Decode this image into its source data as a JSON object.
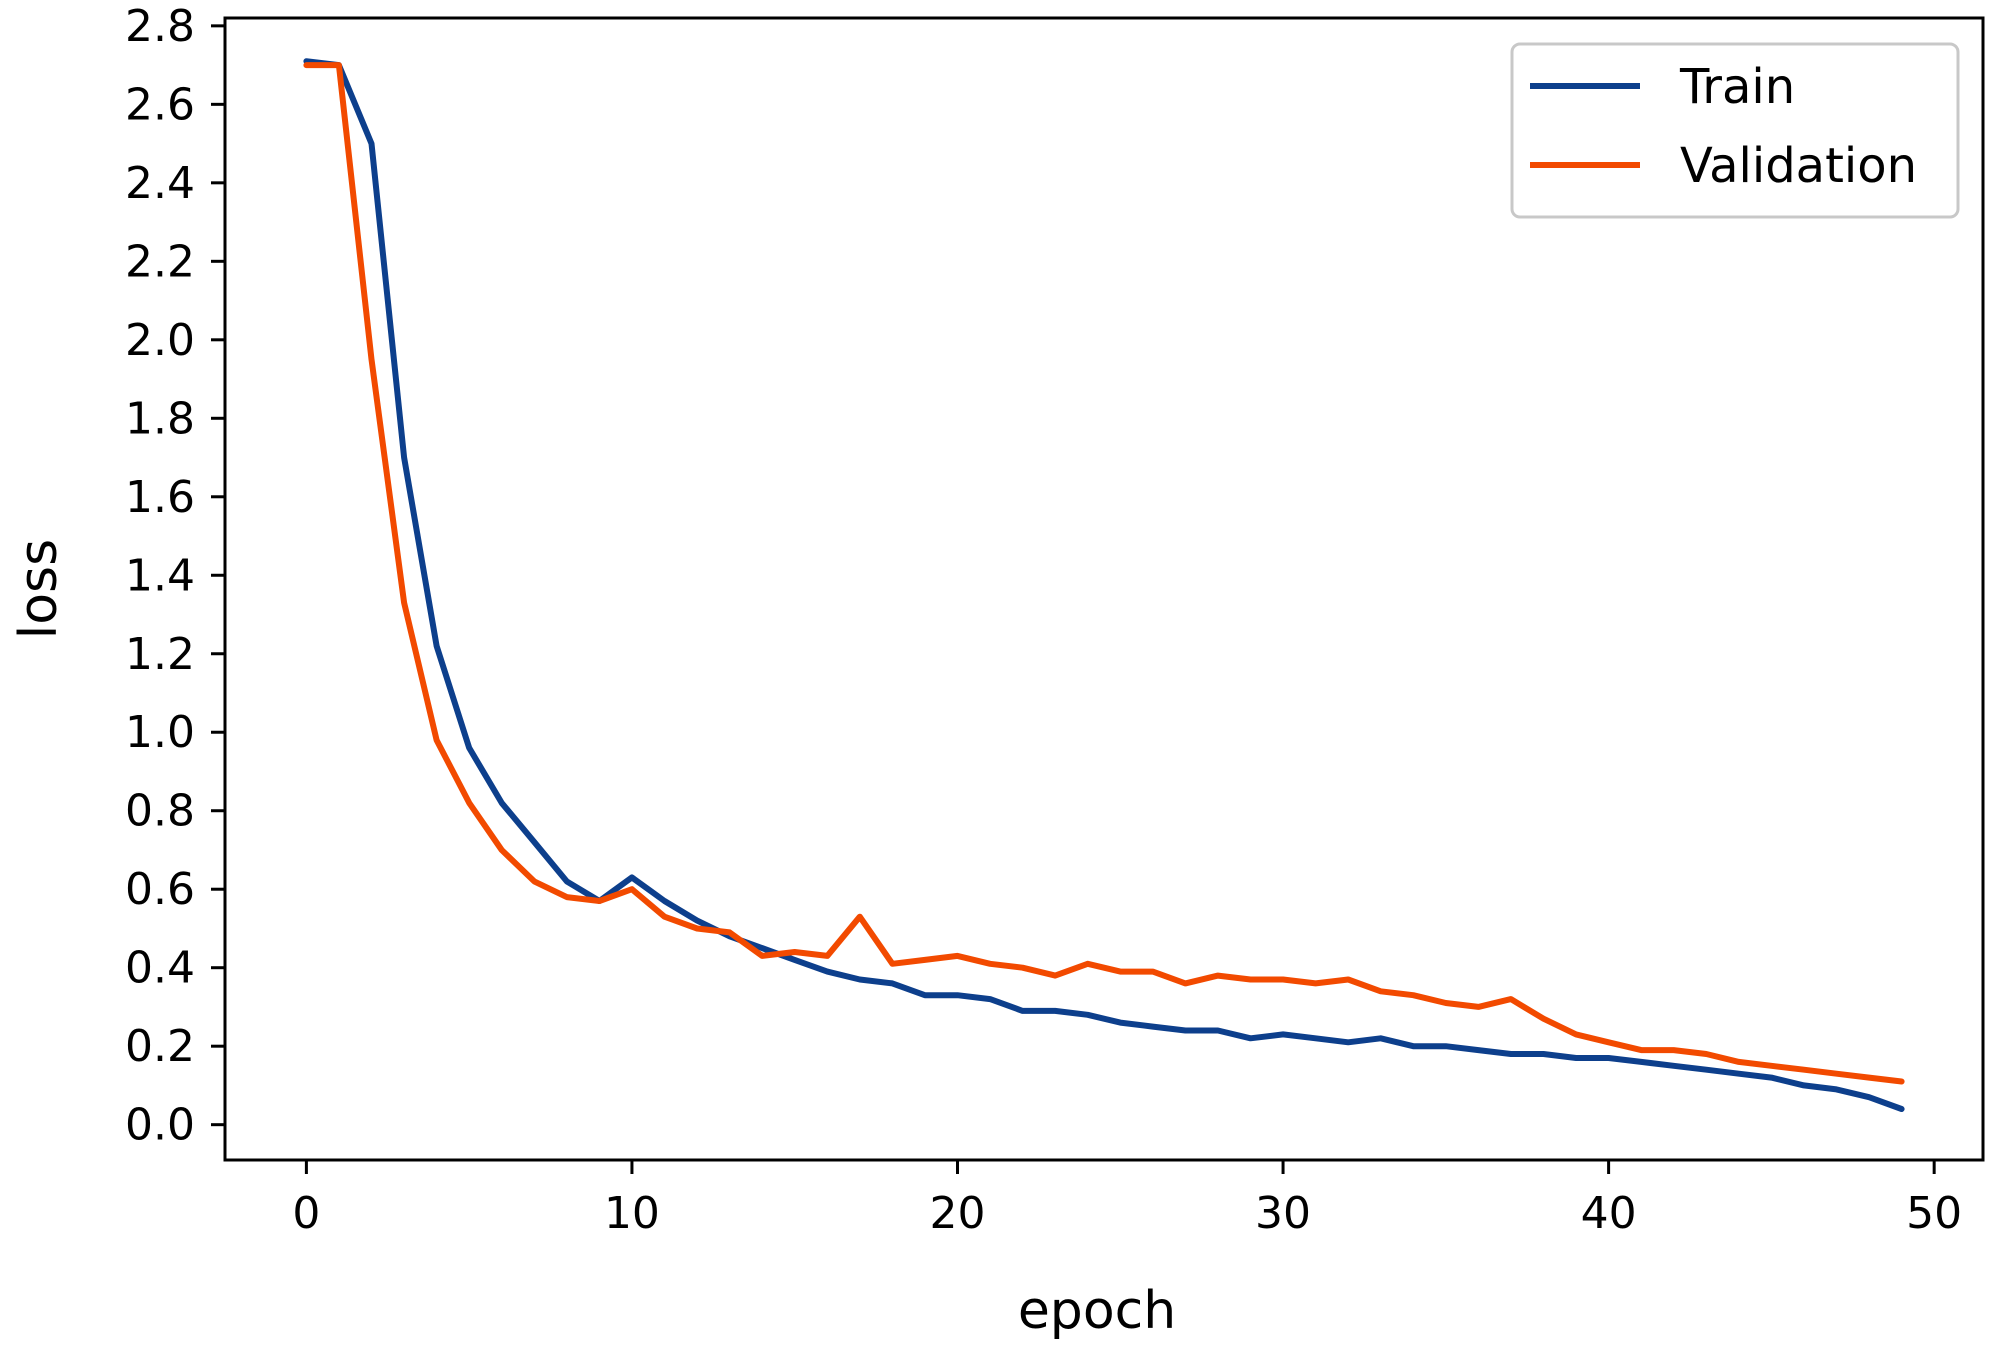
{
  "chart_data": {
    "type": "line",
    "title": "",
    "xlabel": "epoch",
    "ylabel": "loss",
    "xlim": [
      -2.5,
      51.5
    ],
    "ylim": [
      -0.09,
      2.82
    ],
    "grid": false,
    "legend_position": "top-right",
    "x_ticks": [
      0,
      10,
      20,
      30,
      40,
      50
    ],
    "x_tick_labels": [
      "0",
      "10",
      "20",
      "30",
      "40",
      "50"
    ],
    "y_ticks": [
      0.0,
      0.2,
      0.4,
      0.6,
      0.8,
      1.0,
      1.2,
      1.4,
      1.6,
      1.8,
      2.0,
      2.2,
      2.4,
      2.6,
      2.8
    ],
    "y_tick_labels": [
      "0.0",
      "0.2",
      "0.4",
      "0.6",
      "0.8",
      "1.0",
      "1.2",
      "1.4",
      "1.6",
      "1.8",
      "2.0",
      "2.2",
      "2.4",
      "2.6",
      "2.8"
    ],
    "x": [
      0,
      1,
      2,
      3,
      4,
      5,
      6,
      7,
      8,
      9,
      10,
      11,
      12,
      13,
      14,
      15,
      16,
      17,
      18,
      19,
      20,
      21,
      22,
      23,
      24,
      25,
      26,
      27,
      28,
      29,
      30,
      31,
      32,
      33,
      34,
      35,
      36,
      37,
      38,
      39,
      40,
      41,
      42,
      43,
      44,
      45,
      46,
      47,
      48,
      49
    ],
    "series": [
      {
        "name": "Train",
        "color": "#0d3f8c",
        "values": [
          2.71,
          2.7,
          2.5,
          1.7,
          1.22,
          0.96,
          0.82,
          0.72,
          0.62,
          0.57,
          0.63,
          0.57,
          0.52,
          0.48,
          0.45,
          0.42,
          0.39,
          0.37,
          0.36,
          0.33,
          0.33,
          0.32,
          0.29,
          0.29,
          0.28,
          0.26,
          0.25,
          0.24,
          0.24,
          0.22,
          0.23,
          0.22,
          0.21,
          0.22,
          0.2,
          0.2,
          0.19,
          0.18,
          0.18,
          0.17,
          0.17,
          0.16,
          0.15,
          0.14,
          0.13,
          0.12,
          0.1,
          0.09,
          0.07,
          0.04
        ]
      },
      {
        "name": "Validation",
        "color": "#f24a00",
        "values": [
          2.7,
          2.7,
          1.95,
          1.33,
          0.98,
          0.82,
          0.7,
          0.62,
          0.58,
          0.57,
          0.6,
          0.53,
          0.5,
          0.49,
          0.43,
          0.44,
          0.43,
          0.53,
          0.41,
          0.42,
          0.43,
          0.41,
          0.4,
          0.38,
          0.41,
          0.39,
          0.39,
          0.36,
          0.38,
          0.37,
          0.37,
          0.36,
          0.37,
          0.34,
          0.33,
          0.31,
          0.3,
          0.32,
          0.27,
          0.23,
          0.21,
          0.19,
          0.19,
          0.18,
          0.16,
          0.15,
          0.14,
          0.13,
          0.12,
          0.11
        ]
      }
    ]
  }
}
